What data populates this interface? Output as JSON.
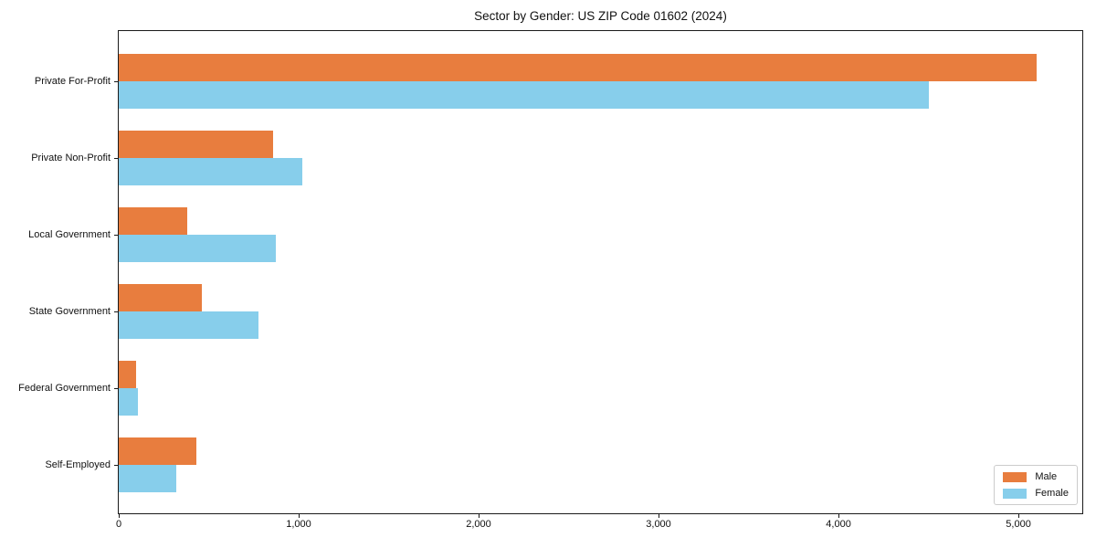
{
  "chart_data": {
    "type": "bar",
    "orientation": "horizontal",
    "title": "Sector by Gender: US ZIP Code 01602 (2024)",
    "categories": [
      "Private For-Profit",
      "Private Non-Profit",
      "Local Government",
      "State Government",
      "Federal Government",
      "Self-Employed"
    ],
    "series": [
      {
        "name": "Male",
        "color": "#e87d3e",
        "values": [
          5100,
          860,
          380,
          460,
          95,
          430
        ]
      },
      {
        "name": "Female",
        "color": "#87ceeb",
        "values": [
          4500,
          1020,
          875,
          775,
          105,
          320
        ]
      }
    ],
    "xlabel": "",
    "ylabel": "",
    "xlim": [
      0,
      5355
    ],
    "x_ticks": [
      {
        "value": 0,
        "label": "0"
      },
      {
        "value": 1000,
        "label": "1,000"
      },
      {
        "value": 2000,
        "label": "2,000"
      },
      {
        "value": 3000,
        "label": "3,000"
      },
      {
        "value": 4000,
        "label": "4,000"
      },
      {
        "value": 5000,
        "label": "5,000"
      }
    ],
    "grid": false,
    "legend_position": "lower right",
    "colors": {
      "axis": "#1a1a1a",
      "legend_border": "#cccccc",
      "background": "#ffffff"
    }
  }
}
